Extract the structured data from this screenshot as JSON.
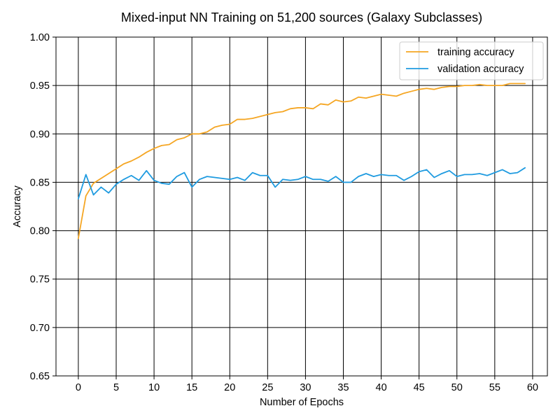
{
  "chart_data": {
    "type": "line",
    "title": "Mixed-input NN Training on 51,200 sources (Galaxy Subclasses)",
    "xlabel": "Number of Epochs",
    "ylabel": "Accuracy",
    "xlim": [
      -2.95,
      61.95
    ],
    "ylim": [
      0.65,
      1.0
    ],
    "xticks": [
      0,
      5,
      10,
      15,
      20,
      25,
      30,
      35,
      40,
      45,
      50,
      55,
      60
    ],
    "yticks": [
      0.65,
      0.7,
      0.75,
      0.8,
      0.85,
      0.9,
      0.95,
      1.0
    ],
    "xtick_labels": [
      "0",
      "5",
      "10",
      "15",
      "20",
      "25",
      "30",
      "35",
      "40",
      "45",
      "50",
      "55",
      "60"
    ],
    "ytick_labels": [
      "0.65",
      "0.70",
      "0.75",
      "0.80",
      "0.85",
      "0.90",
      "0.95",
      "1.00"
    ],
    "grid": true,
    "legend_position": "top-right",
    "x": [
      0,
      1,
      2,
      3,
      4,
      5,
      6,
      7,
      8,
      9,
      10,
      11,
      12,
      13,
      14,
      15,
      16,
      17,
      18,
      19,
      20,
      21,
      22,
      23,
      24,
      25,
      26,
      27,
      28,
      29,
      30,
      31,
      32,
      33,
      34,
      35,
      36,
      37,
      38,
      39,
      40,
      41,
      42,
      43,
      44,
      45,
      46,
      47,
      48,
      49,
      50,
      51,
      52,
      53,
      54,
      55,
      56,
      57,
      58,
      59
    ],
    "series": [
      {
        "name": "training accuracy",
        "color": "#f5a623",
        "values": [
          0.792,
          0.836,
          0.849,
          0.854,
          0.859,
          0.864,
          0.869,
          0.872,
          0.876,
          0.881,
          0.885,
          0.888,
          0.889,
          0.894,
          0.896,
          0.9,
          0.9,
          0.902,
          0.907,
          0.909,
          0.91,
          0.915,
          0.915,
          0.916,
          0.918,
          0.92,
          0.922,
          0.923,
          0.926,
          0.927,
          0.927,
          0.926,
          0.931,
          0.93,
          0.935,
          0.933,
          0.934,
          0.938,
          0.937,
          0.939,
          0.941,
          0.94,
          0.939,
          0.942,
          0.944,
          0.946,
          0.947,
          0.946,
          0.948,
          0.949,
          0.949,
          0.95,
          0.95,
          0.951,
          0.95,
          0.95,
          0.95,
          0.952,
          0.952,
          0.952
        ]
      },
      {
        "name": "validation accuracy",
        "color": "#1f9be0",
        "values": [
          0.833,
          0.858,
          0.837,
          0.845,
          0.839,
          0.848,
          0.853,
          0.857,
          0.852,
          0.862,
          0.852,
          0.849,
          0.848,
          0.856,
          0.86,
          0.845,
          0.853,
          0.856,
          0.855,
          0.854,
          0.853,
          0.855,
          0.852,
          0.86,
          0.857,
          0.857,
          0.845,
          0.853,
          0.852,
          0.853,
          0.856,
          0.853,
          0.853,
          0.851,
          0.856,
          0.85,
          0.85,
          0.856,
          0.859,
          0.856,
          0.858,
          0.857,
          0.857,
          0.852,
          0.856,
          0.861,
          0.863,
          0.855,
          0.859,
          0.862,
          0.856,
          0.858,
          0.858,
          0.859,
          0.857,
          0.86,
          0.863,
          0.859,
          0.86,
          0.865
        ]
      }
    ]
  }
}
